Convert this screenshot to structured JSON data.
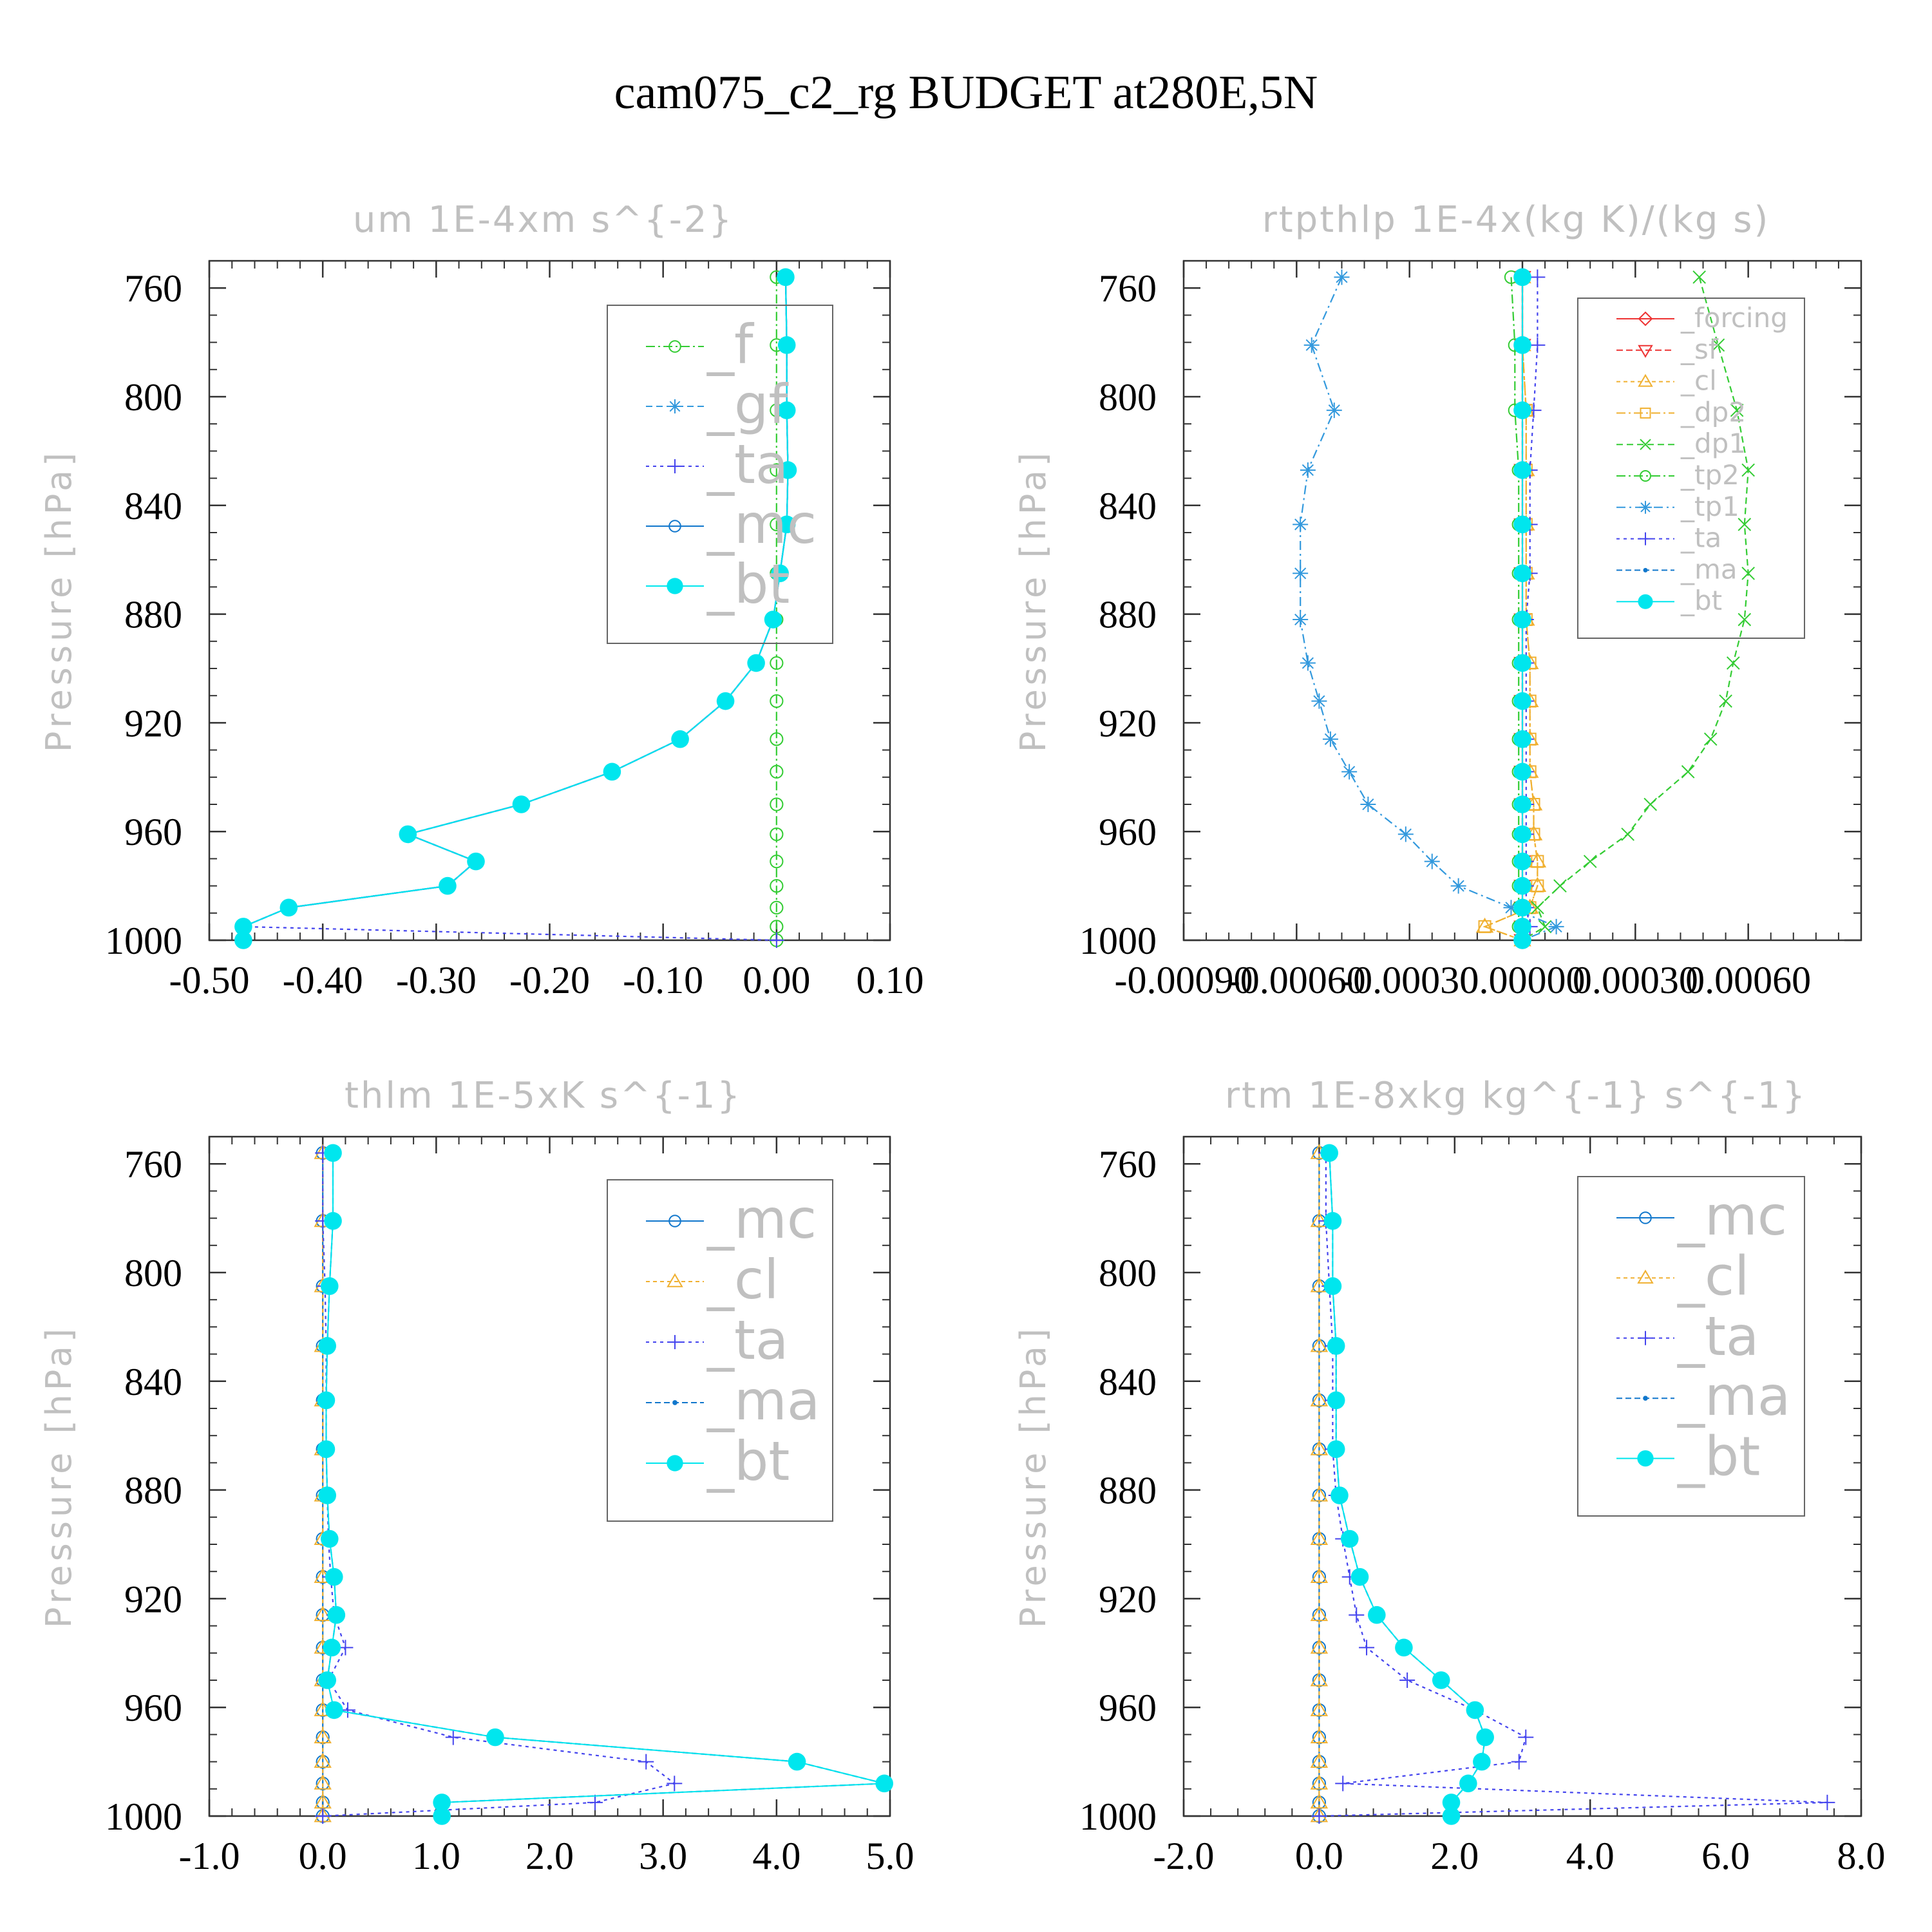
{
  "page": {
    "title": "cam075_c2_rg  BUDGET at280E,5N"
  },
  "colors": {
    "frame": "#333333",
    "label_gray": "#c0c0c0",
    "_f": "#33cc33",
    "_gf": "#3399dd",
    "_ta": "#4444ee",
    "_mc": "#1177cc",
    "_ma": "#1177cc",
    "_bt": "#00e6ee",
    "_forcing": "#ee3333",
    "_sf": "#ee3333",
    "_cl": "#f0b030",
    "_dp2": "#f0b030",
    "_dp1": "#33cc33",
    "_tp2": "#33cc33",
    "_tp1": "#3399dd"
  },
  "chart_data": [
    {
      "type": "line",
      "title": "um  1E-4xm s^{-2}",
      "ylabel": "Pressure [hPa]",
      "xlabel": "",
      "xlim": [
        -0.5,
        0.1
      ],
      "ylim": [
        1000,
        750
      ],
      "xticks": [
        "-0.50",
        "-0.40",
        "-0.30",
        "-0.20",
        "-0.10",
        "0.00",
        "0.10"
      ],
      "yticks": [
        "760",
        "800",
        "840",
        "880",
        "920",
        "960",
        "1000"
      ],
      "pressure": [
        756,
        781,
        805,
        827,
        847,
        865,
        882,
        898,
        912,
        926,
        938,
        950,
        961,
        971,
        980,
        988,
        995,
        1000
      ],
      "legend_position": "top-right",
      "series": [
        {
          "name": "_f",
          "values": [
            0,
            0,
            0,
            0,
            0,
            0,
            0,
            0,
            0,
            0,
            0,
            0,
            0,
            0,
            0,
            0,
            0,
            0
          ]
        },
        {
          "name": "_gf",
          "values": [
            0.008,
            0.009,
            0.009,
            0.01,
            0.009,
            0.003,
            -0.003,
            -0.018,
            -0.045,
            -0.085,
            -0.145,
            -0.225,
            -0.325,
            -0.265,
            -0.29,
            -0.43,
            -0.47,
            -0.47
          ]
        },
        {
          "name": "_ta",
          "values": [
            0.008,
            0.009,
            0.009,
            0.01,
            0.009,
            0.003,
            -0.003,
            -0.018,
            -0.045,
            -0.085,
            -0.145,
            -0.225,
            -0.325,
            -0.265,
            -0.29,
            -0.43,
            -0.47,
            0.0
          ]
        },
        {
          "name": "_mc",
          "values": [
            0.008,
            0.009,
            0.009,
            0.01,
            0.009,
            0.003,
            -0.003,
            -0.018,
            -0.045,
            -0.085,
            -0.145,
            -0.225,
            -0.325,
            -0.265,
            -0.29,
            -0.43,
            -0.47,
            -0.47
          ]
        },
        {
          "name": "_bt",
          "values": [
            0.008,
            0.009,
            0.009,
            0.01,
            0.009,
            0.003,
            -0.003,
            -0.018,
            -0.045,
            -0.085,
            -0.145,
            -0.225,
            -0.325,
            -0.265,
            -0.29,
            -0.43,
            -0.47,
            -0.47
          ]
        }
      ]
    },
    {
      "type": "line",
      "title": "rtpthlp  1E-4x(kg K)/(kg s)",
      "ylabel": "Pressure [hPa]",
      "xlabel": "",
      "xlim": [
        -0.0009,
        0.0009
      ],
      "ylim": [
        1000,
        750
      ],
      "xticks": [
        "-0.00090",
        "-0.00060",
        "-0.00030",
        "0.00000",
        "0.00030",
        "0.00060"
      ],
      "yticks": [
        "760",
        "800",
        "840",
        "880",
        "920",
        "960",
        "1000"
      ],
      "pressure": [
        756,
        781,
        805,
        827,
        847,
        865,
        882,
        898,
        912,
        926,
        938,
        950,
        961,
        971,
        980,
        988,
        995,
        1000
      ],
      "legend_position": "top-right",
      "series": [
        {
          "name": "_forcing",
          "values": [
            0,
            0,
            0,
            0,
            0,
            0,
            0,
            0,
            0,
            0,
            0,
            0,
            0,
            0,
            0,
            0,
            0,
            0
          ]
        },
        {
          "name": "_sf",
          "values": [
            0,
            0,
            0,
            0,
            0,
            0,
            0,
            0,
            0,
            0,
            0,
            0,
            0,
            0,
            0,
            0,
            0,
            0
          ]
        },
        {
          "name": "_cl",
          "values": [
            0,
            0,
            1e-05,
            1e-05,
            1e-05,
            1e-05,
            1e-05,
            2e-05,
            2e-05,
            2e-05,
            2e-05,
            3e-05,
            3e-05,
            4e-05,
            4e-05,
            2e-05,
            -0.0001,
            0
          ]
        },
        {
          "name": "_dp2",
          "values": [
            0,
            0,
            1e-05,
            1e-05,
            1e-05,
            1e-05,
            1e-05,
            2e-05,
            2e-05,
            2e-05,
            2e-05,
            3e-05,
            3e-05,
            4e-05,
            4e-05,
            2e-05,
            -0.0001,
            0
          ]
        },
        {
          "name": "_dp1",
          "values": [
            0.00047,
            0.00052,
            0.00057,
            0.0006,
            0.00059,
            0.0006,
            0.00059,
            0.00056,
            0.00054,
            0.0005,
            0.00044,
            0.00034,
            0.00028,
            0.00018,
            0.0001,
            4e-05,
            6e-05,
            0
          ]
        },
        {
          "name": "_tp2",
          "values": [
            -3e-05,
            -2e-05,
            -2e-05,
            -1e-05,
            -1e-05,
            -1e-05,
            -1e-05,
            -1e-05,
            -1e-05,
            -1e-05,
            -1e-05,
            -1e-05,
            -1e-05,
            -1e-05,
            -1e-05,
            -1e-05,
            -1e-05,
            0
          ]
        },
        {
          "name": "_tp1",
          "values": [
            -0.00048,
            -0.00056,
            -0.0005,
            -0.00057,
            -0.00059,
            -0.00059,
            -0.00059,
            -0.00057,
            -0.00054,
            -0.00051,
            -0.00046,
            -0.00041,
            -0.00031,
            -0.00024,
            -0.00017,
            -3e-05,
            9e-05,
            0
          ]
        },
        {
          "name": "_ta",
          "values": [
            4e-05,
            4e-05,
            3e-05,
            2e-05,
            2e-05,
            2e-05,
            1e-05,
            1e-05,
            1e-05,
            1e-05,
            1e-05,
            1e-05,
            1e-05,
            1e-05,
            1e-05,
            1e-05,
            2e-05,
            0
          ]
        },
        {
          "name": "_ma",
          "values": [
            0,
            0,
            0,
            0,
            0,
            0,
            0,
            0,
            0,
            0,
            0,
            0,
            0,
            0,
            0,
            0,
            0,
            0
          ]
        },
        {
          "name": "_bt",
          "values": [
            0,
            0,
            0,
            0,
            0,
            0,
            0,
            0,
            0,
            0,
            0,
            0,
            0,
            0,
            0,
            0,
            0,
            0
          ]
        }
      ]
    },
    {
      "type": "line",
      "title": "thlm  1E-5xK s^{-1}",
      "ylabel": "Pressure [hPa]",
      "xlabel": "",
      "xlim": [
        -1.0,
        5.0
      ],
      "ylim": [
        1000,
        750
      ],
      "xticks": [
        "-1.0",
        "0.0",
        "1.0",
        "2.0",
        "3.0",
        "4.0",
        "5.0"
      ],
      "yticks": [
        "760",
        "800",
        "840",
        "880",
        "920",
        "960",
        "1000"
      ],
      "pressure": [
        756,
        781,
        805,
        827,
        847,
        865,
        882,
        898,
        912,
        926,
        938,
        950,
        961,
        971,
        980,
        988,
        995,
        1000
      ],
      "legend_position": "top-right",
      "series": [
        {
          "name": "_mc",
          "values": [
            0,
            0,
            0,
            0,
            0,
            0,
            0,
            0,
            0,
            0,
            0,
            0,
            0,
            0,
            0,
            0,
            0,
            0
          ]
        },
        {
          "name": "_cl",
          "values": [
            0,
            0,
            0,
            0,
            0,
            0,
            0,
            0,
            0,
            0,
            0,
            0,
            0,
            0,
            0,
            0,
            0,
            0
          ]
        },
        {
          "name": "_ta",
          "values": [
            0.0,
            0.0,
            0.02,
            0.03,
            0.03,
            0.03,
            0.04,
            0.05,
            0.07,
            0.1,
            0.2,
            0.05,
            0.22,
            1.15,
            2.85,
            3.1,
            2.4,
            0.0
          ]
        },
        {
          "name": "_ma",
          "values": [
            0.09,
            0.09,
            0.06,
            0.04,
            0.03,
            0.03,
            0.04,
            0.06,
            0.1,
            0.12,
            0.08,
            0.04,
            0.1,
            1.52,
            4.18,
            4.95,
            1.05,
            1.05
          ]
        },
        {
          "name": "_bt",
          "values": [
            0.09,
            0.09,
            0.06,
            0.04,
            0.03,
            0.03,
            0.04,
            0.06,
            0.1,
            0.12,
            0.08,
            0.04,
            0.1,
            1.52,
            4.18,
            4.95,
            1.05,
            1.05
          ]
        }
      ]
    },
    {
      "type": "line",
      "title": "rtm  1E-8xkg kg^{-1} s^{-1}",
      "ylabel": "Pressure [hPa]",
      "xlabel": "",
      "xlim": [
        -2.0,
        8.0
      ],
      "ylim": [
        1000,
        750
      ],
      "xticks": [
        "-2.0",
        "0.0",
        "2.0",
        "4.0",
        "6.0",
        "8.0"
      ],
      "yticks": [
        "760",
        "800",
        "840",
        "880",
        "920",
        "960",
        "1000"
      ],
      "pressure": [
        756,
        781,
        805,
        827,
        847,
        865,
        882,
        898,
        912,
        926,
        938,
        950,
        961,
        971,
        980,
        988,
        995,
        1000
      ],
      "legend_position": "top-right",
      "series": [
        {
          "name": "_mc",
          "values": [
            0,
            0,
            0,
            0,
            0,
            0,
            0,
            0,
            0,
            0,
            0,
            0,
            0,
            0,
            0,
            0,
            0,
            0
          ]
        },
        {
          "name": "_cl",
          "values": [
            0,
            0,
            0,
            0,
            0,
            0,
            0,
            0,
            0,
            0,
            0,
            0,
            0,
            0,
            0,
            0,
            0,
            0
          ]
        },
        {
          "name": "_ta",
          "values": [
            0.1,
            0.1,
            0.15,
            0.2,
            0.2,
            0.2,
            0.25,
            0.35,
            0.45,
            0.55,
            0.7,
            1.3,
            2.3,
            3.05,
            2.95,
            0.35,
            7.5,
            0.0
          ]
        },
        {
          "name": "_ma",
          "values": [
            0.15,
            0.2,
            0.2,
            0.25,
            0.25,
            0.25,
            0.3,
            0.45,
            0.6,
            0.85,
            1.25,
            1.8,
            2.3,
            2.45,
            2.4,
            2.2,
            1.95,
            1.95
          ]
        },
        {
          "name": "_bt",
          "values": [
            0.15,
            0.2,
            0.2,
            0.25,
            0.25,
            0.25,
            0.3,
            0.45,
            0.6,
            0.85,
            1.25,
            1.8,
            2.3,
            2.45,
            2.4,
            2.2,
            1.95,
            1.95
          ]
        }
      ]
    }
  ]
}
